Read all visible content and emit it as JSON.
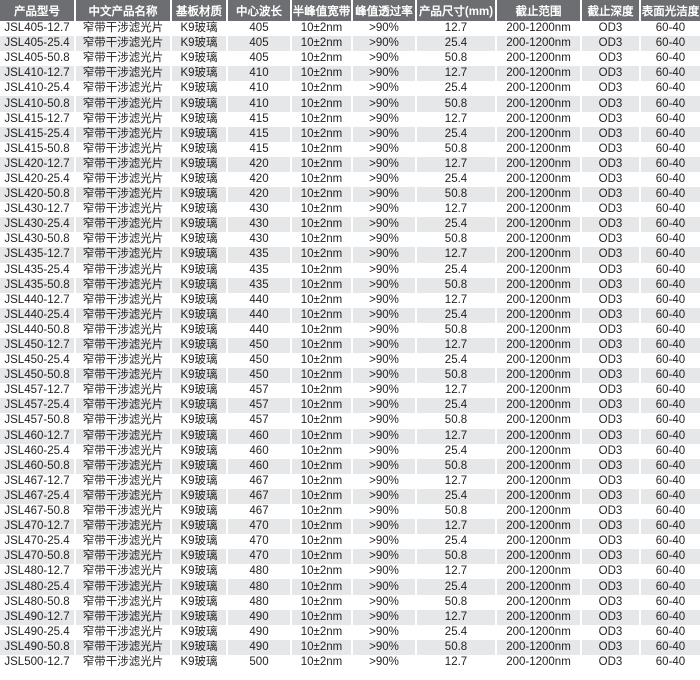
{
  "headers": [
    "产品型号",
    "中文产品名称",
    "基板材质",
    "中心波长",
    "半峰值宽带",
    "峰值透过率",
    "产品尺寸(mm)",
    "截止范围",
    "截止深度",
    "表面光洁度"
  ],
  "rows": [
    [
      "JSL405-12.7",
      "窄带干涉滤光片",
      "K9玻璃",
      "405",
      "10±2nm",
      ">90%",
      "12.7",
      "200-1200nm",
      "OD3",
      "60-40"
    ],
    [
      "JSL405-25.4",
      "窄带干涉滤光片",
      "K9玻璃",
      "405",
      "10±2nm",
      ">90%",
      "25.4",
      "200-1200nm",
      "OD3",
      "60-40"
    ],
    [
      "JSL405-50.8",
      "窄带干涉滤光片",
      "K9玻璃",
      "405",
      "10±2nm",
      ">90%",
      "50.8",
      "200-1200nm",
      "OD3",
      "60-40"
    ],
    [
      "JSL410-12.7",
      "窄带干涉滤光片",
      "K9玻璃",
      "410",
      "10±2nm",
      ">90%",
      "12.7",
      "200-1200nm",
      "OD3",
      "60-40"
    ],
    [
      "JSL410-25.4",
      "窄带干涉滤光片",
      "K9玻璃",
      "410",
      "10±2nm",
      ">90%",
      "25.4",
      "200-1200nm",
      "OD3",
      "60-40"
    ],
    [
      "JSL410-50.8",
      "窄带干涉滤光片",
      "K9玻璃",
      "410",
      "10±2nm",
      ">90%",
      "50.8",
      "200-1200nm",
      "OD3",
      "60-40"
    ],
    [
      "JSL415-12.7",
      "窄带干涉滤光片",
      "K9玻璃",
      "415",
      "10±2nm",
      ">90%",
      "12.7",
      "200-1200nm",
      "OD3",
      "60-40"
    ],
    [
      "JSL415-25.4",
      "窄带干涉滤光片",
      "K9玻璃",
      "415",
      "10±2nm",
      ">90%",
      "25.4",
      "200-1200nm",
      "OD3",
      "60-40"
    ],
    [
      "JSL415-50.8",
      "窄带干涉滤光片",
      "K9玻璃",
      "415",
      "10±2nm",
      ">90%",
      "50.8",
      "200-1200nm",
      "OD3",
      "60-40"
    ],
    [
      "JSL420-12.7",
      "窄带干涉滤光片",
      "K9玻璃",
      "420",
      "10±2nm",
      ">90%",
      "12.7",
      "200-1200nm",
      "OD3",
      "60-40"
    ],
    [
      "JSL420-25.4",
      "窄带干涉滤光片",
      "K9玻璃",
      "420",
      "10±2nm",
      ">90%",
      "25.4",
      "200-1200nm",
      "OD3",
      "60-40"
    ],
    [
      "JSL420-50.8",
      "窄带干涉滤光片",
      "K9玻璃",
      "420",
      "10±2nm",
      ">90%",
      "50.8",
      "200-1200nm",
      "OD3",
      "60-40"
    ],
    [
      "JSL430-12.7",
      "窄带干涉滤光片",
      "K9玻璃",
      "430",
      "10±2nm",
      ">90%",
      "12.7",
      "200-1200nm",
      "OD3",
      "60-40"
    ],
    [
      "JSL430-25.4",
      "窄带干涉滤光片",
      "K9玻璃",
      "430",
      "10±2nm",
      ">90%",
      "25.4",
      "200-1200nm",
      "OD3",
      "60-40"
    ],
    [
      "JSL430-50.8",
      "窄带干涉滤光片",
      "K9玻璃",
      "430",
      "10±2nm",
      ">90%",
      "50.8",
      "200-1200nm",
      "OD3",
      "60-40"
    ],
    [
      "JSL435-12.7",
      "窄带干涉滤光片",
      "K9玻璃",
      "435",
      "10±2nm",
      ">90%",
      "12.7",
      "200-1200nm",
      "OD3",
      "60-40"
    ],
    [
      "JSL435-25.4",
      "窄带干涉滤光片",
      "K9玻璃",
      "435",
      "10±2nm",
      ">90%",
      "25.4",
      "200-1200nm",
      "OD3",
      "60-40"
    ],
    [
      "JSL435-50.8",
      "窄带干涉滤光片",
      "K9玻璃",
      "435",
      "10±2nm",
      ">90%",
      "50.8",
      "200-1200nm",
      "OD3",
      "60-40"
    ],
    [
      "JSL440-12.7",
      "窄带干涉滤光片",
      "K9玻璃",
      "440",
      "10±2nm",
      ">90%",
      "12.7",
      "200-1200nm",
      "OD3",
      "60-40"
    ],
    [
      "JSL440-25.4",
      "窄带干涉滤光片",
      "K9玻璃",
      "440",
      "10±2nm",
      ">90%",
      "25.4",
      "200-1200nm",
      "OD3",
      "60-40"
    ],
    [
      "JSL440-50.8",
      "窄带干涉滤光片",
      "K9玻璃",
      "440",
      "10±2nm",
      ">90%",
      "50.8",
      "200-1200nm",
      "OD3",
      "60-40"
    ],
    [
      "JSL450-12.7",
      "窄带干涉滤光片",
      "K9玻璃",
      "450",
      "10±2nm",
      ">90%",
      "12.7",
      "200-1200nm",
      "OD3",
      "60-40"
    ],
    [
      "JSL450-25.4",
      "窄带干涉滤光片",
      "K9玻璃",
      "450",
      "10±2nm",
      ">90%",
      "25.4",
      "200-1200nm",
      "OD3",
      "60-40"
    ],
    [
      "JSL450-50.8",
      "窄带干涉滤光片",
      "K9玻璃",
      "450",
      "10±2nm",
      ">90%",
      "50.8",
      "200-1200nm",
      "OD3",
      "60-40"
    ],
    [
      "JSL457-12.7",
      "窄带干涉滤光片",
      "K9玻璃",
      "457",
      "10±2nm",
      ">90%",
      "12.7",
      "200-1200nm",
      "OD3",
      "60-40"
    ],
    [
      "JSL457-25.4",
      "窄带干涉滤光片",
      "K9玻璃",
      "457",
      "10±2nm",
      ">90%",
      "25.4",
      "200-1200nm",
      "OD3",
      "60-40"
    ],
    [
      "JSL457-50.8",
      "窄带干涉滤光片",
      "K9玻璃",
      "457",
      "10±2nm",
      ">90%",
      "50.8",
      "200-1200nm",
      "OD3",
      "60-40"
    ],
    [
      "JSL460-12.7",
      "窄带干涉滤光片",
      "K9玻璃",
      "460",
      "10±2nm",
      ">90%",
      "12.7",
      "200-1200nm",
      "OD3",
      "60-40"
    ],
    [
      "JSL460-25.4",
      "窄带干涉滤光片",
      "K9玻璃",
      "460",
      "10±2nm",
      ">90%",
      "25.4",
      "200-1200nm",
      "OD3",
      "60-40"
    ],
    [
      "JSL460-50.8",
      "窄带干涉滤光片",
      "K9玻璃",
      "460",
      "10±2nm",
      ">90%",
      "50.8",
      "200-1200nm",
      "OD3",
      "60-40"
    ],
    [
      "JSL467-12.7",
      "窄带干涉滤光片",
      "K9玻璃",
      "467",
      "10±2nm",
      ">90%",
      "12.7",
      "200-1200nm",
      "OD3",
      "60-40"
    ],
    [
      "JSL467-25.4",
      "窄带干涉滤光片",
      "K9玻璃",
      "467",
      "10±2nm",
      ">90%",
      "25.4",
      "200-1200nm",
      "OD3",
      "60-40"
    ],
    [
      "JSL467-50.8",
      "窄带干涉滤光片",
      "K9玻璃",
      "467",
      "10±2nm",
      ">90%",
      "50.8",
      "200-1200nm",
      "OD3",
      "60-40"
    ],
    [
      "JSL470-12.7",
      "窄带干涉滤光片",
      "K9玻璃",
      "470",
      "10±2nm",
      ">90%",
      "12.7",
      "200-1200nm",
      "OD3",
      "60-40"
    ],
    [
      "JSL470-25.4",
      "窄带干涉滤光片",
      "K9玻璃",
      "470",
      "10±2nm",
      ">90%",
      "25.4",
      "200-1200nm",
      "OD3",
      "60-40"
    ],
    [
      "JSL470-50.8",
      "窄带干涉滤光片",
      "K9玻璃",
      "470",
      "10±2nm",
      ">90%",
      "50.8",
      "200-1200nm",
      "OD3",
      "60-40"
    ],
    [
      "JSL480-12.7",
      "窄带干涉滤光片",
      "K9玻璃",
      "480",
      "10±2nm",
      ">90%",
      "12.7",
      "200-1200nm",
      "OD3",
      "60-40"
    ],
    [
      "JSL480-25.4",
      "窄带干涉滤光片",
      "K9玻璃",
      "480",
      "10±2nm",
      ">90%",
      "25.4",
      "200-1200nm",
      "OD3",
      "60-40"
    ],
    [
      "JSL480-50.8",
      "窄带干涉滤光片",
      "K9玻璃",
      "480",
      "10±2nm",
      ">90%",
      "50.8",
      "200-1200nm",
      "OD3",
      "60-40"
    ],
    [
      "JSL490-12.7",
      "窄带干涉滤光片",
      "K9玻璃",
      "490",
      "10±2nm",
      ">90%",
      "12.7",
      "200-1200nm",
      "OD3",
      "60-40"
    ],
    [
      "JSL490-25.4",
      "窄带干涉滤光片",
      "K9玻璃",
      "490",
      "10±2nm",
      ">90%",
      "25.4",
      "200-1200nm",
      "OD3",
      "60-40"
    ],
    [
      "JSL490-50.8",
      "窄带干涉滤光片",
      "K9玻璃",
      "490",
      "10±2nm",
      ">90%",
      "50.8",
      "200-1200nm",
      "OD3",
      "60-40"
    ],
    [
      "JSL500-12.7",
      "窄带干涉滤光片",
      "K9玻璃",
      "500",
      "10±2nm",
      ">90%",
      "12.7",
      "200-1200nm",
      "OD3",
      "60-40"
    ]
  ],
  "colors": {
    "header_bg": "#6d6e71",
    "alt_row_bg": "#e6e7e8"
  }
}
